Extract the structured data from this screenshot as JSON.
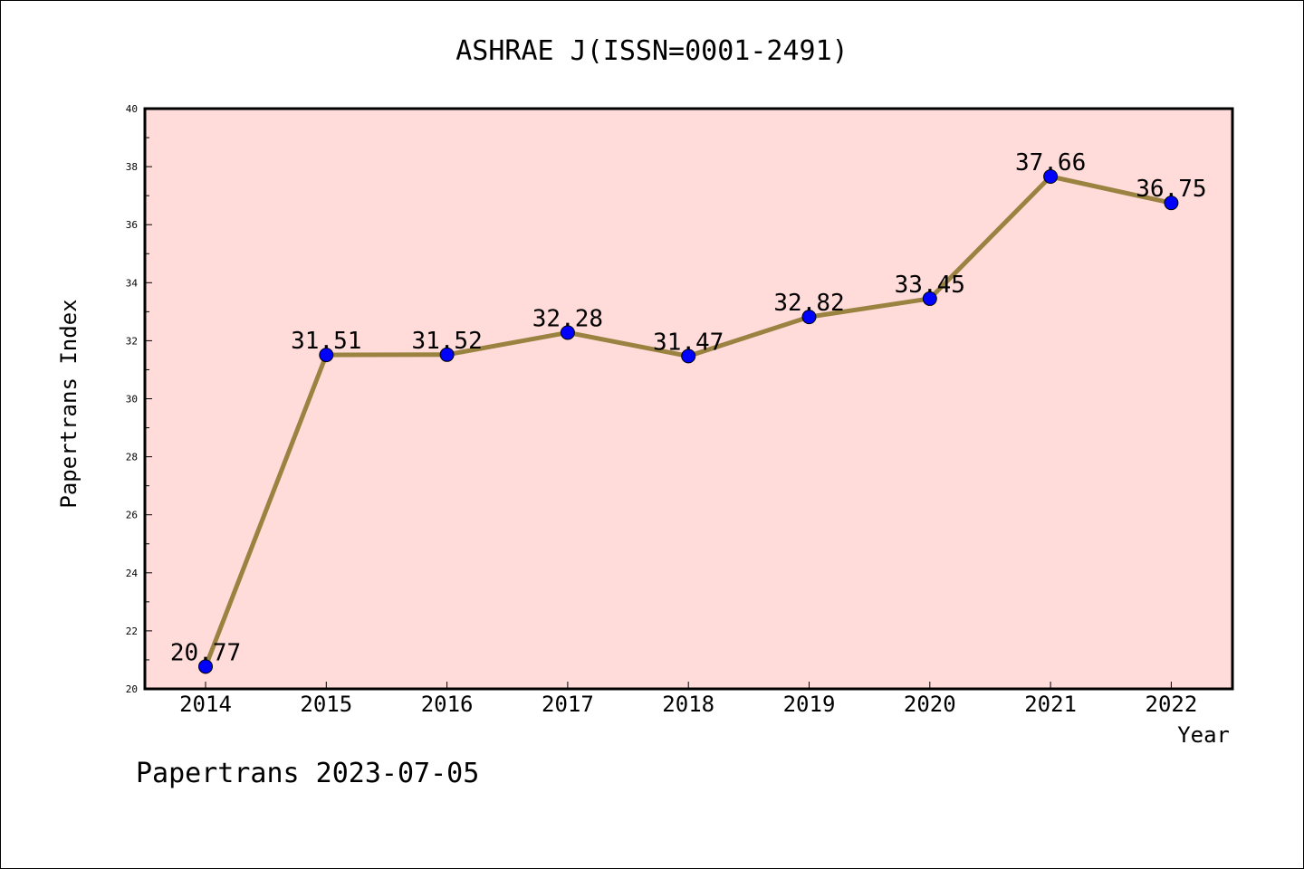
{
  "chart_data": {
    "type": "line",
    "title": "ASHRAE J(ISSN=0001-2491)",
    "xlabel": "Year",
    "ylabel": "Papertrans Index",
    "x": [
      "2014",
      "2015",
      "2016",
      "2017",
      "2018",
      "2019",
      "2020",
      "2021",
      "2022"
    ],
    "series": [
      {
        "values": [
          20.77,
          31.51,
          31.52,
          32.28,
          31.47,
          32.82,
          33.45,
          37.66,
          36.75
        ]
      }
    ],
    "data_labels": [
      "20.77",
      "31.51",
      "31.52",
      "32.28",
      "31.47",
      "32.82",
      "33.45",
      "37.66",
      "36.75"
    ],
    "ylim": [
      20,
      40
    ],
    "y_ticks": [
      "20",
      "22",
      "24",
      "26",
      "28",
      "30",
      "32",
      "34",
      "36",
      "38",
      "40"
    ],
    "grid": false,
    "legend": "none",
    "colors": {
      "plot_background": "#ffdbd9",
      "line": "#9a8240",
      "marker": "#0000ff"
    }
  },
  "footer": {
    "text": "Papertrans 2023-07-05"
  }
}
